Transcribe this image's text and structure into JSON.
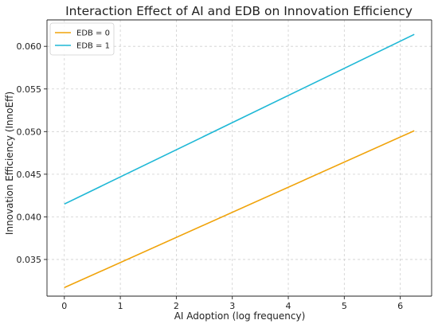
{
  "chart_data": {
    "type": "line",
    "title": "Interaction Effect of AI and EDB on Innovation Efficiency",
    "xlabel": "AI Adoption (log frequency)",
    "ylabel": "Innovation Efficiency (InnoEff)",
    "xlim": [
      -0.31,
      6.56
    ],
    "ylim": [
      0.0307,
      0.0631
    ],
    "x_ticks": [
      0,
      1,
      2,
      3,
      4,
      5,
      6
    ],
    "y_ticks": [
      0.035,
      0.04,
      0.045,
      0.05,
      0.055,
      0.06
    ],
    "y_tick_labels": [
      "0.035",
      "0.040",
      "0.045",
      "0.050",
      "0.055",
      "0.060"
    ],
    "grid": true,
    "legend_position": "top-left",
    "series": [
      {
        "name": "EDB = 0",
        "color": "#f0a30a",
        "x": [
          0,
          6.25
        ],
        "y": [
          0.0317,
          0.0501
        ]
      },
      {
        "name": "EDB = 1",
        "color": "#1fb8d6",
        "x": [
          0,
          6.25
        ],
        "y": [
          0.0415,
          0.0614
        ]
      }
    ]
  }
}
